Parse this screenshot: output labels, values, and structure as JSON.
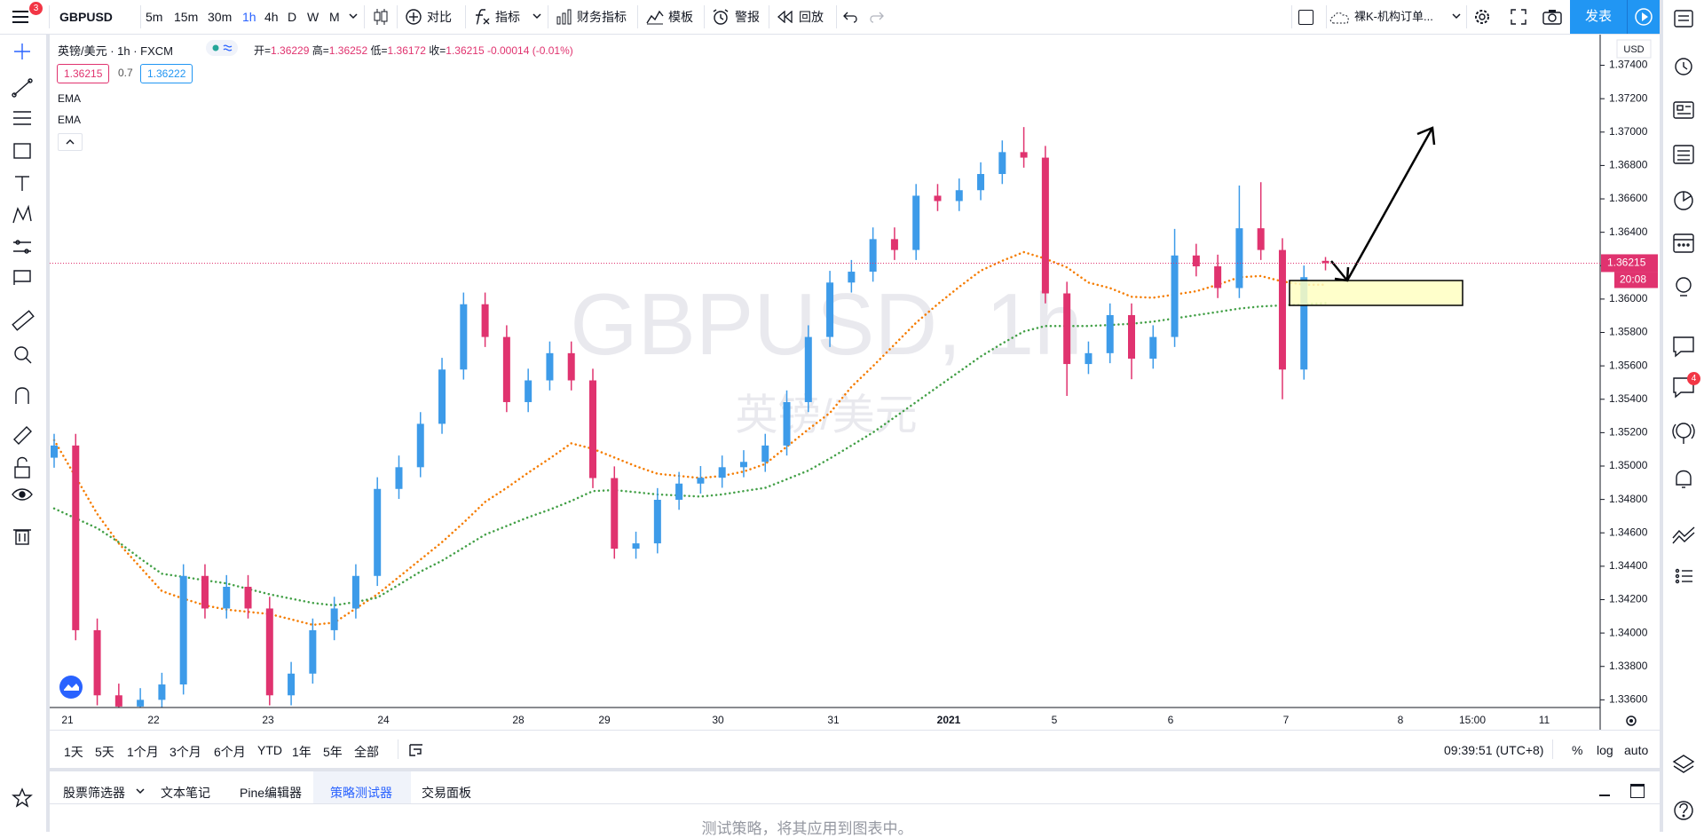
{
  "toolbar": {
    "menu_badge": 3,
    "symbol": "GBPUSD",
    "intervals": [
      "5m",
      "15m",
      "30m",
      "1h",
      "4h",
      "D",
      "W",
      "M"
    ],
    "buttons": [
      "对比",
      "指标",
      "财务指标",
      "模板",
      "警报",
      "回放"
    ],
    "layout_name": "裸K-机构订单...",
    "publish": "发表"
  },
  "legend": {
    "title": "英镑/美元 · 1h · FXCM",
    "ohlc_labels": [
      "开=",
      "高=",
      "低=",
      "收="
    ],
    "change": -0.00014,
    "change_pct": "(-0.01%)",
    "bid": 1.36215,
    "spread": 0.7,
    "ask": 1.36222,
    "indicators": [
      "EMA",
      "EMA"
    ]
  },
  "chart": {
    "type": "candlestick",
    "up_color": "#3d9be9",
    "down_color": "#e0336f",
    "open": [
      1.3505,
      1.35123,
      1.34017,
      1.33627,
      1.3356,
      1.336,
      1.33692,
      1.34342,
      1.34147,
      1.34277,
      1.34147,
      1.33627,
      1.33757,
      1.34017,
      1.34147,
      1.34342,
      1.34863,
      1.34993,
      1.35253,
      1.35578,
      1.35969,
      1.35773,
      1.35383,
      1.35513,
      1.35676,
      1.35513,
      1.34928,
      1.34505,
      1.34537,
      1.34798,
      1.34895,
      1.3493,
      1.34993,
      1.35025,
      1.35123,
      1.35383,
      1.35773,
      1.36099,
      1.36164,
      1.36359,
      1.36294,
      1.36619,
      1.36587,
      1.36652,
      1.36749,
      1.3688,
      1.36847,
      1.36034,
      1.35611,
      1.35676,
      1.35904,
      1.35643,
      1.35773,
      1.36261,
      1.36196,
      1.36066,
      1.36424,
      1.36294,
      1.35578,
      1.36229
    ],
    "high": [
      1.35193,
      1.35193,
      1.34087,
      1.33697,
      1.3367,
      1.33762,
      1.34412,
      1.34412,
      1.34347,
      1.34347,
      1.34217,
      1.33827,
      1.34087,
      1.34217,
      1.34412,
      1.34933,
      1.35063,
      1.35323,
      1.35648,
      1.36039,
      1.36039,
      1.35843,
      1.35583,
      1.35746,
      1.35746,
      1.35583,
      1.34998,
      1.34607,
      1.34868,
      1.34965,
      1.35,
      1.35063,
      1.35095,
      1.35193,
      1.35453,
      1.35843,
      1.36169,
      1.36234,
      1.36429,
      1.36429,
      1.36689,
      1.36689,
      1.36722,
      1.36819,
      1.3695,
      1.3703,
      1.36917,
      1.36104,
      1.35746,
      1.35974,
      1.35974,
      1.35843,
      1.3642,
      1.36331,
      1.36266,
      1.3668,
      1.367,
      1.36364,
      1.36201,
      1.36252
    ],
    "low": [
      1.3499,
      1.33957,
      1.33567,
      1.335,
      1.335,
      1.3354,
      1.33632,
      1.34087,
      1.34087,
      1.34087,
      1.33567,
      1.33567,
      1.33697,
      1.33957,
      1.34087,
      1.34282,
      1.34803,
      1.34933,
      1.35193,
      1.35518,
      1.35713,
      1.35323,
      1.35323,
      1.35453,
      1.35453,
      1.34868,
      1.34445,
      1.34445,
      1.34477,
      1.34738,
      1.34835,
      1.3487,
      1.34933,
      1.34965,
      1.35063,
      1.35323,
      1.35713,
      1.36039,
      1.36104,
      1.36234,
      1.36234,
      1.36527,
      1.36527,
      1.36592,
      1.36689,
      1.36787,
      1.35974,
      1.3542,
      1.35551,
      1.35616,
      1.3552,
      1.35583,
      1.35713,
      1.36136,
      1.36006,
      1.36006,
      1.36234,
      1.354,
      1.35518,
      1.36172
    ],
    "close": [
      1.35123,
      1.34017,
      1.33627,
      1.3356,
      1.336,
      1.33692,
      1.34342,
      1.34147,
      1.34277,
      1.34147,
      1.33627,
      1.33757,
      1.34017,
      1.34147,
      1.34342,
      1.34863,
      1.34993,
      1.35253,
      1.35578,
      1.35969,
      1.35773,
      1.35383,
      1.35513,
      1.35676,
      1.35513,
      1.34928,
      1.34505,
      1.34537,
      1.34798,
      1.34895,
      1.3493,
      1.34993,
      1.35025,
      1.35123,
      1.35383,
      1.35773,
      1.36099,
      1.36164,
      1.36359,
      1.36294,
      1.36619,
      1.36587,
      1.36652,
      1.36749,
      1.3688,
      1.36847,
      1.36034,
      1.35611,
      1.35676,
      1.35904,
      1.35643,
      1.35773,
      1.36261,
      1.36196,
      1.36066,
      1.36424,
      1.36294,
      1.35578,
      1.36131,
      1.36215
    ],
    "ema": [
      {
        "name": "EMA",
        "color": "#f57c00",
        "values": [
          1.35155,
          1.34934,
          1.34713,
          1.34537,
          1.34394,
          1.34251,
          1.34206,
          1.34166,
          1.3414,
          1.34127,
          1.34114,
          1.34082,
          1.34049,
          1.34062,
          1.34147,
          1.34232,
          1.34336,
          1.3444,
          1.34544,
          1.34661,
          1.34785,
          1.34869,
          1.3496,
          1.35045,
          1.35136,
          1.35103,
          1.35051,
          1.34999,
          1.34954,
          1.34941,
          1.34928,
          1.34941,
          1.34967,
          1.35012,
          1.35116,
          1.3522,
          1.35318,
          1.35474,
          1.35598,
          1.35728,
          1.35858,
          1.35969,
          1.36073,
          1.3617,
          1.36229,
          1.36281,
          1.36242,
          1.3619,
          1.36099,
          1.36066,
          1.36014,
          1.36008,
          1.36027,
          1.36047,
          1.36086,
          1.36131,
          1.36138,
          1.36105,
          1.36086,
          1.36086
        ]
      },
      {
        "name": "EMA",
        "color": "#43a047",
        "values": [
          1.34746,
          1.34687,
          1.34628,
          1.34544,
          1.34446,
          1.34355,
          1.34336,
          1.34316,
          1.34297,
          1.34264,
          1.34232,
          1.34206,
          1.3418,
          1.34166,
          1.34186,
          1.34212,
          1.3429,
          1.34368,
          1.34433,
          1.34511,
          1.34589,
          1.34641,
          1.34693,
          1.34739,
          1.34791,
          1.3485,
          1.34856,
          1.34843,
          1.3483,
          1.34824,
          1.34817,
          1.3483,
          1.3485,
          1.34869,
          1.34921,
          1.34973,
          1.35045,
          1.35123,
          1.35201,
          1.35292,
          1.35383,
          1.35474,
          1.35565,
          1.35656,
          1.35734,
          1.35806,
          1.35839,
          1.35839,
          1.35839,
          1.35845,
          1.35852,
          1.35865,
          1.35884,
          1.35904,
          1.35923,
          1.35943,
          1.35956,
          1.35962,
          1.35969,
          1.35975
        ]
      }
    ],
    "ylim": [
      1.33554,
      1.37589
    ],
    "yticks": [
      {
        "value": 1.336,
        "label": "1.33600"
      },
      {
        "value": 1.338,
        "label": "1.33800"
      },
      {
        "value": 1.34,
        "label": "1.34000"
      },
      {
        "value": 1.342,
        "label": "1.34200"
      },
      {
        "value": 1.344,
        "label": "1.34400"
      },
      {
        "value": 1.346,
        "label": "1.34600"
      },
      {
        "value": 1.348,
        "label": "1.34800"
      },
      {
        "value": 1.35,
        "label": "1.35000"
      },
      {
        "value": 1.352,
        "label": "1.35200"
      },
      {
        "value": 1.354,
        "label": "1.35400"
      },
      {
        "value": 1.356,
        "label": "1.35600"
      },
      {
        "value": 1.358,
        "label": "1.35800"
      },
      {
        "value": 1.36,
        "label": "1.36000"
      },
      {
        "value": 1.362,
        "label": "1.36200"
      },
      {
        "value": 1.364,
        "label": "1.36400"
      },
      {
        "value": 1.366,
        "label": "1.36600"
      },
      {
        "value": 1.368,
        "label": "1.36800"
      },
      {
        "value": 1.37,
        "label": "1.37000"
      },
      {
        "value": 1.372,
        "label": "1.37200"
      },
      {
        "value": 1.374,
        "label": "1.37400"
      }
    ],
    "grid": false,
    "x_labels": [
      "21",
      "22",
      "23",
      "24",
      "28",
      "29",
      "30",
      "31",
      "2021",
      "5",
      "6",
      "7",
      "8",
      "15:00",
      "11"
    ],
    "currency": "USD",
    "countdown": "20:08",
    "watermark": {
      "symbol": "GBPUSD, 1h",
      "name": "英镑/美元"
    }
  },
  "bottom_bar": {
    "ranges": [
      "1天",
      "5天",
      "1个月",
      "3个月",
      "6个月",
      "YTD",
      "1年",
      "5年",
      "全部"
    ],
    "time": "09:39:51 (UTC+8)",
    "scale_options": [
      "%",
      "log",
      "auto"
    ]
  },
  "panel": {
    "tabs": [
      "股票筛选器",
      "文本笔记",
      "Pine编辑器",
      "策略测试器",
      "交易面板"
    ],
    "message": "测试策略，将其应用到图表中。"
  },
  "sidebar_badge": 4
}
